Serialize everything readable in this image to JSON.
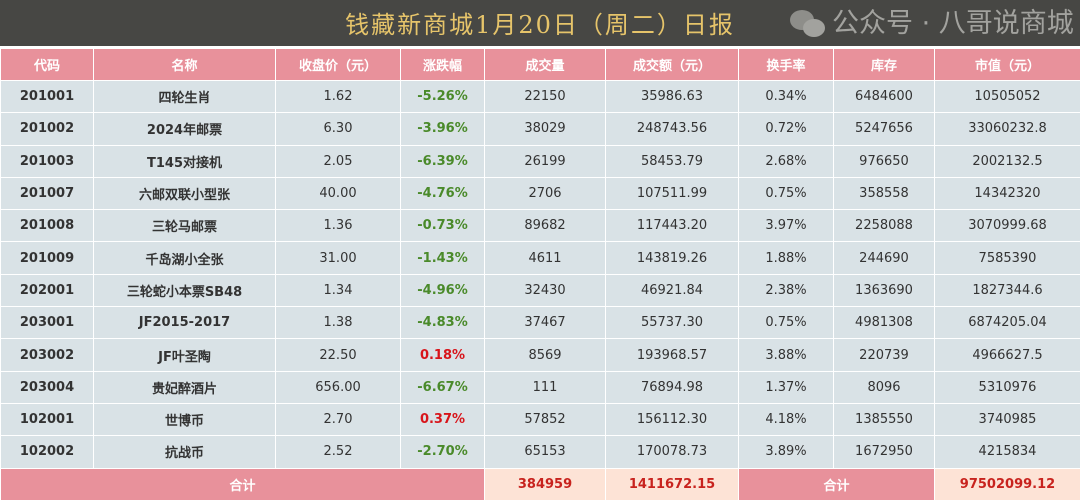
{
  "title": "钱藏新商城1月20日（周二）日报",
  "headers": [
    "代码",
    "名称",
    "收盘价（元）",
    "涨跌幅",
    "成交量",
    "成交额（元）",
    "换手率",
    "库存",
    "市值（元）"
  ],
  "rows": [
    [
      "201001",
      "四轮生肖",
      "1.62",
      "-5.26%",
      "22150",
      "35986.63",
      "0.34%",
      "6484600",
      "10505052"
    ],
    [
      "201002",
      "2024年邮票",
      "6.30",
      "-3.96%",
      "38029",
      "248743.56",
      "0.72%",
      "5247656",
      "33060232.8"
    ],
    [
      "201003",
      "T145对接机",
      "2.05",
      "-6.39%",
      "26199",
      "58453.79",
      "2.68%",
      "976650",
      "2002132.5"
    ],
    [
      "201007",
      "六邮双联小型张",
      "40.00",
      "-4.76%",
      "2706",
      "107511.99",
      "0.75%",
      "358558",
      "14342320"
    ],
    [
      "201008",
      "三轮马邮票",
      "1.36",
      "-0.73%",
      "89682",
      "117443.20",
      "3.97%",
      "2258088",
      "3070999.68"
    ],
    [
      "201009",
      "千岛湖小全张",
      "31.00",
      "-1.43%",
      "4611",
      "143819.26",
      "1.88%",
      "244690",
      "7585390"
    ],
    [
      "202001",
      "三轮蛇小本票SB48",
      "1.34",
      "-4.96%",
      "32430",
      "46921.84",
      "2.38%",
      "1363690",
      "1827344.6"
    ],
    [
      "203001",
      "JF2015-2017",
      "1.38",
      "-4.83%",
      "37467",
      "55737.30",
      "0.75%",
      "4981308",
      "6874205.04"
    ],
    [
      "203002",
      "JF叶圣陶",
      "22.50",
      "0.18%",
      "8569",
      "193968.57",
      "3.88%",
      "220739",
      "4966627.5"
    ],
    [
      "203004",
      "贵妃醉酒片",
      "656.00",
      "-6.67%",
      "111",
      "76894.98",
      "1.37%",
      "8096",
      "5310976"
    ],
    [
      "102001",
      "世博币",
      "2.70",
      "0.37%",
      "57852",
      "156112.30",
      "4.18%",
      "1385550",
      "3740985"
    ],
    [
      "102002",
      "抗战币",
      "2.52",
      "-2.70%",
      "65153",
      "170078.73",
      "3.89%",
      "1672950",
      "4215834"
    ]
  ],
  "total": {
    "label": "合计",
    "volume": "384959",
    "amount": "1411672.15",
    "label2": "合计",
    "market_value": "97502099.12"
  },
  "watermark": "公众号 · 八哥说商城",
  "colors": {
    "header": "#e8919b",
    "row": "#d9e2e6",
    "up": "#d8141a",
    "down": "#4a8a2a",
    "title_bg": "#474744",
    "title_text": "#e6c46a"
  }
}
